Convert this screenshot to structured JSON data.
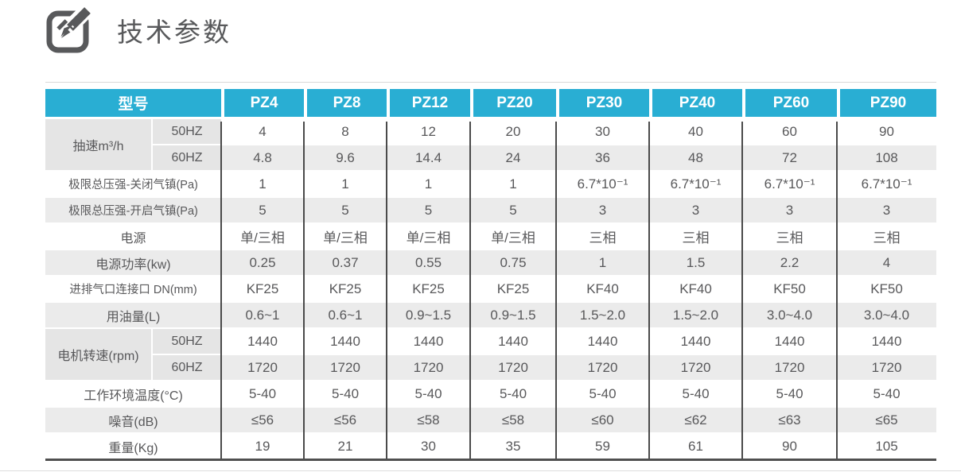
{
  "page": {
    "title": "技术参数"
  },
  "table": {
    "model_header": "型号",
    "models": [
      "PZ4",
      "PZ8",
      "PZ12",
      "PZ20",
      "PZ30",
      "PZ40",
      "PZ60",
      "PZ90"
    ],
    "rows": [
      {
        "label": "抽速m³/h",
        "sub": "50HZ",
        "group": "start",
        "shade": false,
        "values": [
          "4",
          "8",
          "12",
          "20",
          "30",
          "40",
          "60",
          "90"
        ]
      },
      {
        "label": "抽速m³/h",
        "sub": "60HZ",
        "group": "end",
        "shade": true,
        "values": [
          "4.8",
          "9.6",
          "14.4",
          "24",
          "36",
          "48",
          "72",
          "108"
        ]
      },
      {
        "label": "极限总压强-关闭气镇(Pa)",
        "shade": false,
        "values": [
          "1",
          "1",
          "1",
          "1",
          "6.7*10⁻¹",
          "6.7*10⁻¹",
          "6.7*10⁻¹",
          "6.7*10⁻¹"
        ]
      },
      {
        "label": "极限总压强-开启气镇(Pa)",
        "shade": true,
        "values": [
          "5",
          "5",
          "5",
          "5",
          "3",
          "3",
          "3",
          "3"
        ]
      },
      {
        "label": "电源",
        "shade": false,
        "values": [
          "单/三相",
          "单/三相",
          "单/三相",
          "单/三相",
          "三相",
          "三相",
          "三相",
          "三相"
        ]
      },
      {
        "label": "电源功率(kw)",
        "shade": true,
        "values": [
          "0.25",
          "0.37",
          "0.55",
          "0.75",
          "1",
          "1.5",
          "2.2",
          "4"
        ]
      },
      {
        "label": "进排气口连接口 DN(mm)",
        "shade": false,
        "values": [
          "KF25",
          "KF25",
          "KF25",
          "KF25",
          "KF40",
          "KF40",
          "KF50",
          "KF50"
        ]
      },
      {
        "label": "用油量(L)",
        "shade": true,
        "values": [
          "0.6~1",
          "0.6~1",
          "0.9~1.5",
          "0.9~1.5",
          "1.5~2.0",
          "1.5~2.0",
          "3.0~4.0",
          "3.0~4.0"
        ]
      },
      {
        "label": "电机转速(rpm)",
        "sub": "50HZ",
        "group": "start",
        "shade": false,
        "values": [
          "1440",
          "1440",
          "1440",
          "1440",
          "1440",
          "1440",
          "1440",
          "1440"
        ]
      },
      {
        "label": "电机转速(rpm)",
        "sub": "60HZ",
        "group": "end",
        "shade": true,
        "values": [
          "1720",
          "1720",
          "1720",
          "1720",
          "1720",
          "1720",
          "1720",
          "1720"
        ]
      },
      {
        "label": "工作环境温度(°C)",
        "shade": false,
        "values": [
          "5-40",
          "5-40",
          "5-40",
          "5-40",
          "5-40",
          "5-40",
          "5-40",
          "5-40"
        ]
      },
      {
        "label": "噪音(dB)",
        "shade": true,
        "values": [
          "≤56",
          "≤56",
          "≤58",
          "≤58",
          "≤60",
          "≤62",
          "≤63",
          "≤65"
        ]
      },
      {
        "label": "重量(Kg)",
        "shade": false,
        "values": [
          "19",
          "21",
          "30",
          "35",
          "59",
          "61",
          "90",
          "105"
        ]
      }
    ]
  },
  "colors": {
    "header_bg": "#29aed3",
    "header_text": "#ffffff",
    "shade_row_bg": "#ebebeb",
    "label_group_bg": "#e5e5e5",
    "grid_dark": "#4a4a4a",
    "text": "#58585a",
    "title_text": "#58595b"
  }
}
